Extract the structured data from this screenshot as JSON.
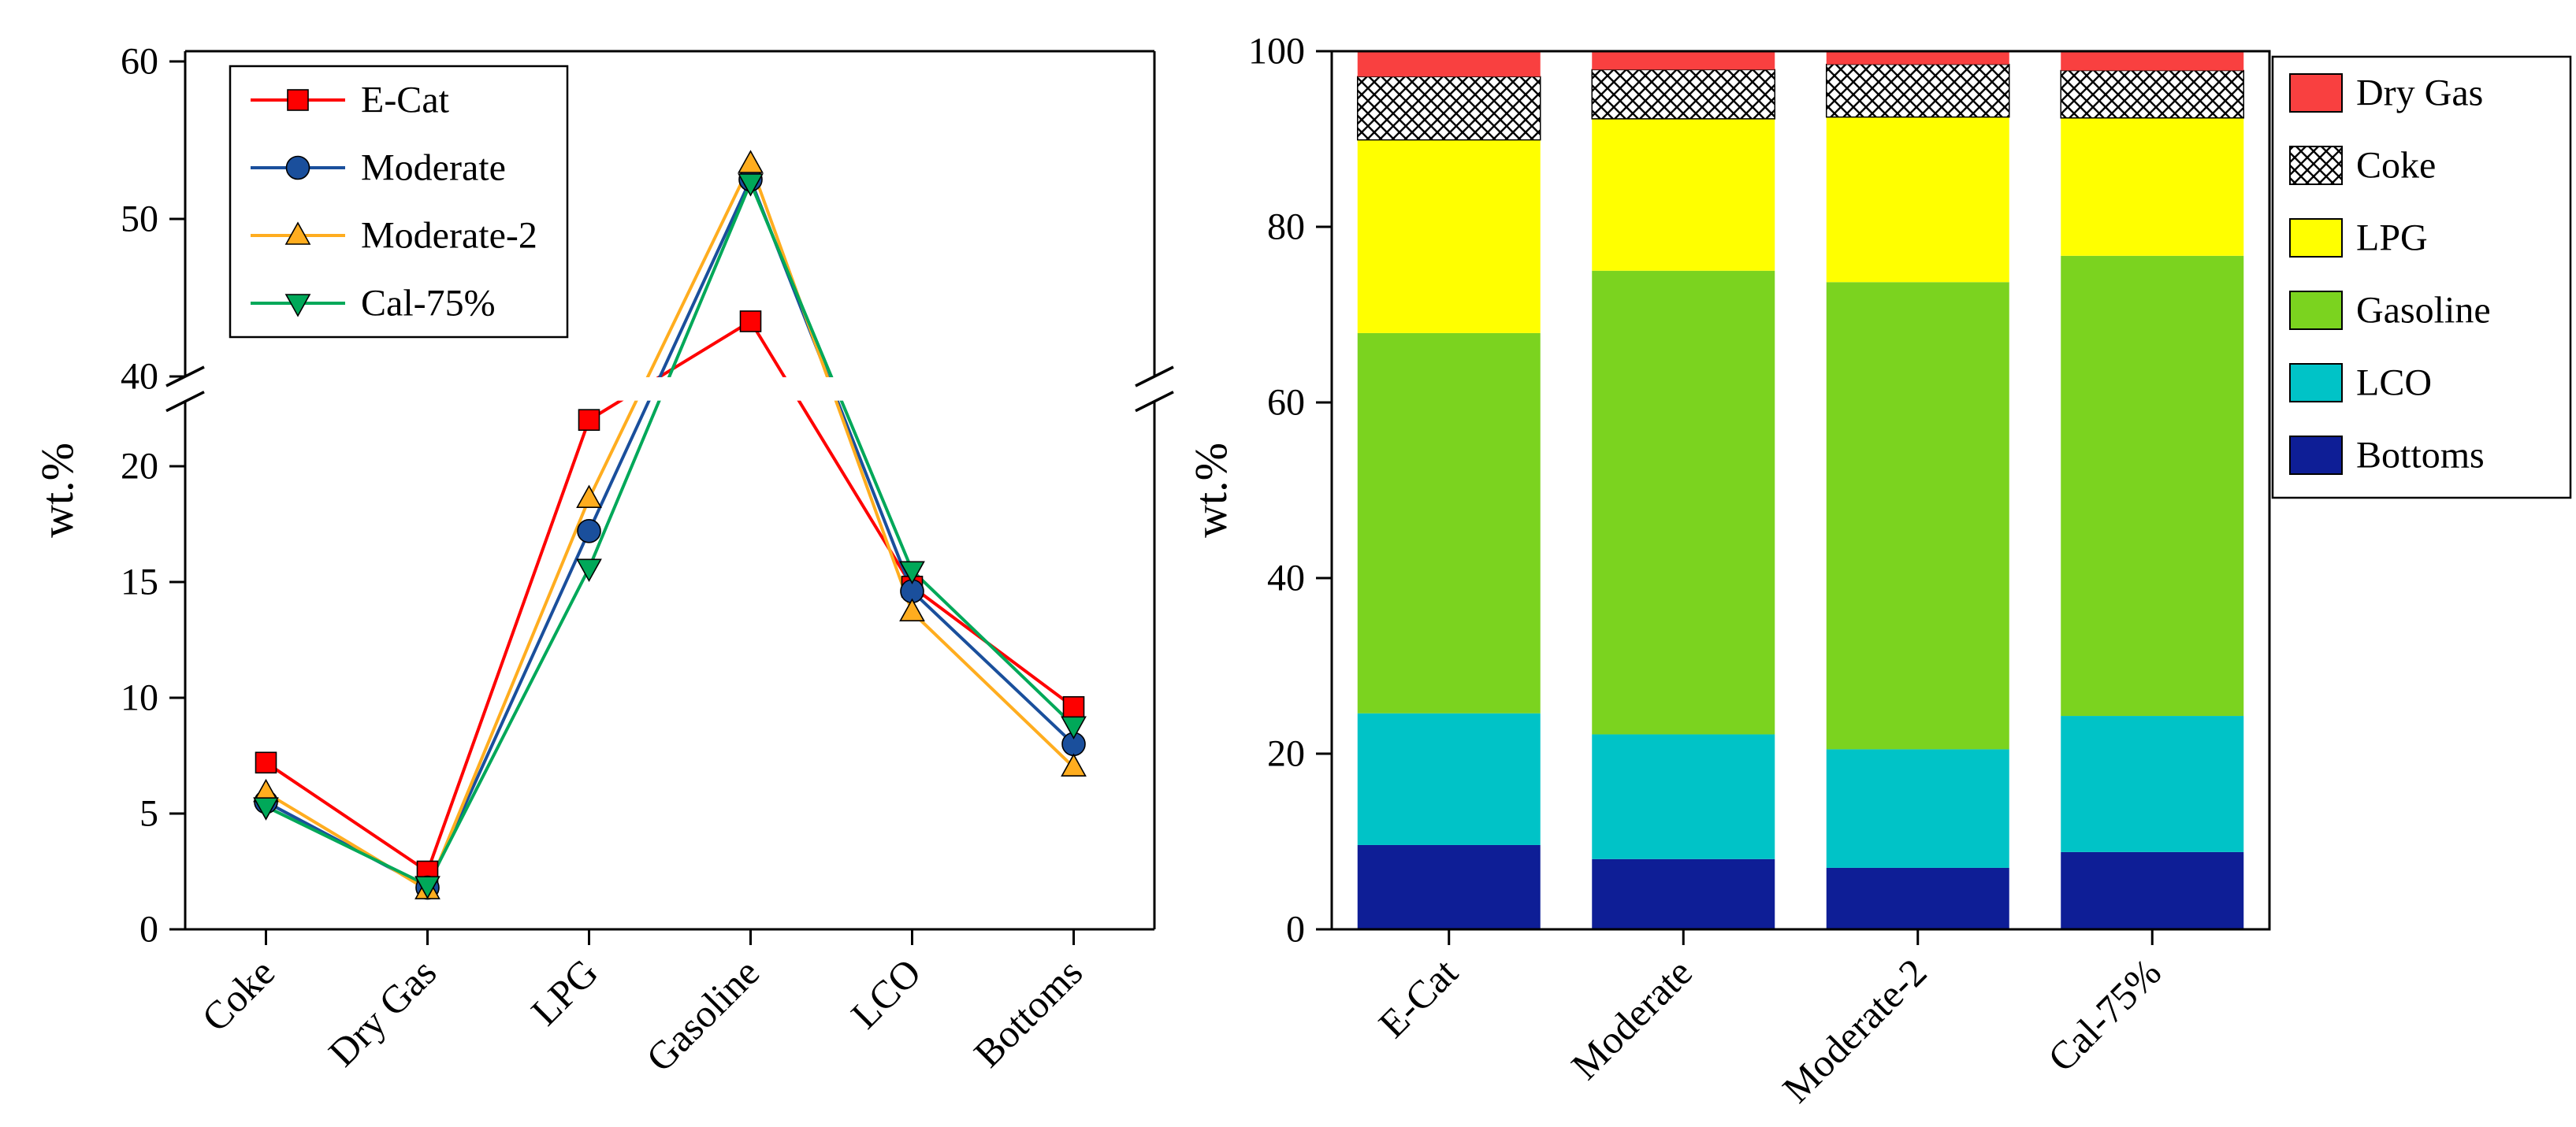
{
  "figure": {
    "background": "#ffffff",
    "axis_color": "#000000"
  },
  "chart_data": [
    {
      "id": "yields-line-chart",
      "type": "line",
      "title": "",
      "ylabel": "wt.%",
      "categories": [
        "Coke",
        "Dry Gas",
        "LPG",
        "Gasoline",
        "LCO",
        "Bottoms"
      ],
      "y_axis": {
        "tick_segments": [
          [
            0,
            5,
            10,
            15,
            20
          ],
          [
            40,
            50,
            60
          ]
        ],
        "break_between": [
          22.8,
          40
        ],
        "ylim": [
          0,
          60.6
        ]
      },
      "legend_position": "top-left",
      "series": [
        {
          "name": "E-Cat",
          "color": "#fe0000",
          "marker": "square",
          "values": [
            7.2,
            2.5,
            22.0,
            43.5,
            14.8,
            9.6
          ]
        },
        {
          "name": "Moderate",
          "color": "#1a4f9c",
          "marker": "circle",
          "values": [
            5.5,
            1.8,
            17.2,
            52.5,
            14.6,
            8.0
          ]
        },
        {
          "name": "Moderate-2",
          "color": "#ffad1f",
          "marker": "triangle-up",
          "values": [
            5.9,
            1.7,
            18.6,
            53.5,
            13.7,
            7.0
          ]
        },
        {
          "name": "Cal-75%",
          "color": "#00a859",
          "marker": "triangle-down",
          "values": [
            5.3,
            1.9,
            15.6,
            52.3,
            15.5,
            8.8
          ]
        }
      ]
    },
    {
      "id": "yields-stacked-bar-chart",
      "type": "bar",
      "stacked": true,
      "title": "",
      "ylabel": "wt.%",
      "ylim": [
        0,
        100
      ],
      "y_ticks": [
        0,
        20,
        40,
        60,
        80,
        100
      ],
      "categories": [
        "E-Cat",
        "Moderate",
        "Moderate-2",
        "Cal-75%"
      ],
      "series": [
        {
          "name": "Bottoms",
          "color": "#0e1e96",
          "pattern": "solid",
          "values": [
            9.6,
            8.0,
            7.0,
            8.8
          ]
        },
        {
          "name": "LCO",
          "color": "#00c3c7",
          "pattern": "solid",
          "values": [
            15.0,
            14.2,
            13.5,
            15.5
          ]
        },
        {
          "name": "Gasoline",
          "color": "#7bd31f",
          "pattern": "solid",
          "values": [
            43.3,
            52.8,
            53.2,
            52.4
          ]
        },
        {
          "name": "LPG",
          "color": "#ffff00",
          "pattern": "solid",
          "values": [
            22.0,
            17.3,
            18.8,
            15.7
          ]
        },
        {
          "name": "Coke",
          "color": "#ffffff",
          "pattern": "crosshatch",
          "values": [
            7.2,
            5.6,
            6.0,
            5.4
          ]
        },
        {
          "name": "Dry Gas",
          "color": "#f94040",
          "pattern": "solid",
          "values": [
            2.9,
            2.1,
            1.5,
            2.2
          ]
        }
      ],
      "legend_order": [
        "Dry Gas",
        "Coke",
        "LPG",
        "Gasoline",
        "LCO",
        "Bottoms"
      ],
      "legend_position": "outside-right"
    }
  ]
}
